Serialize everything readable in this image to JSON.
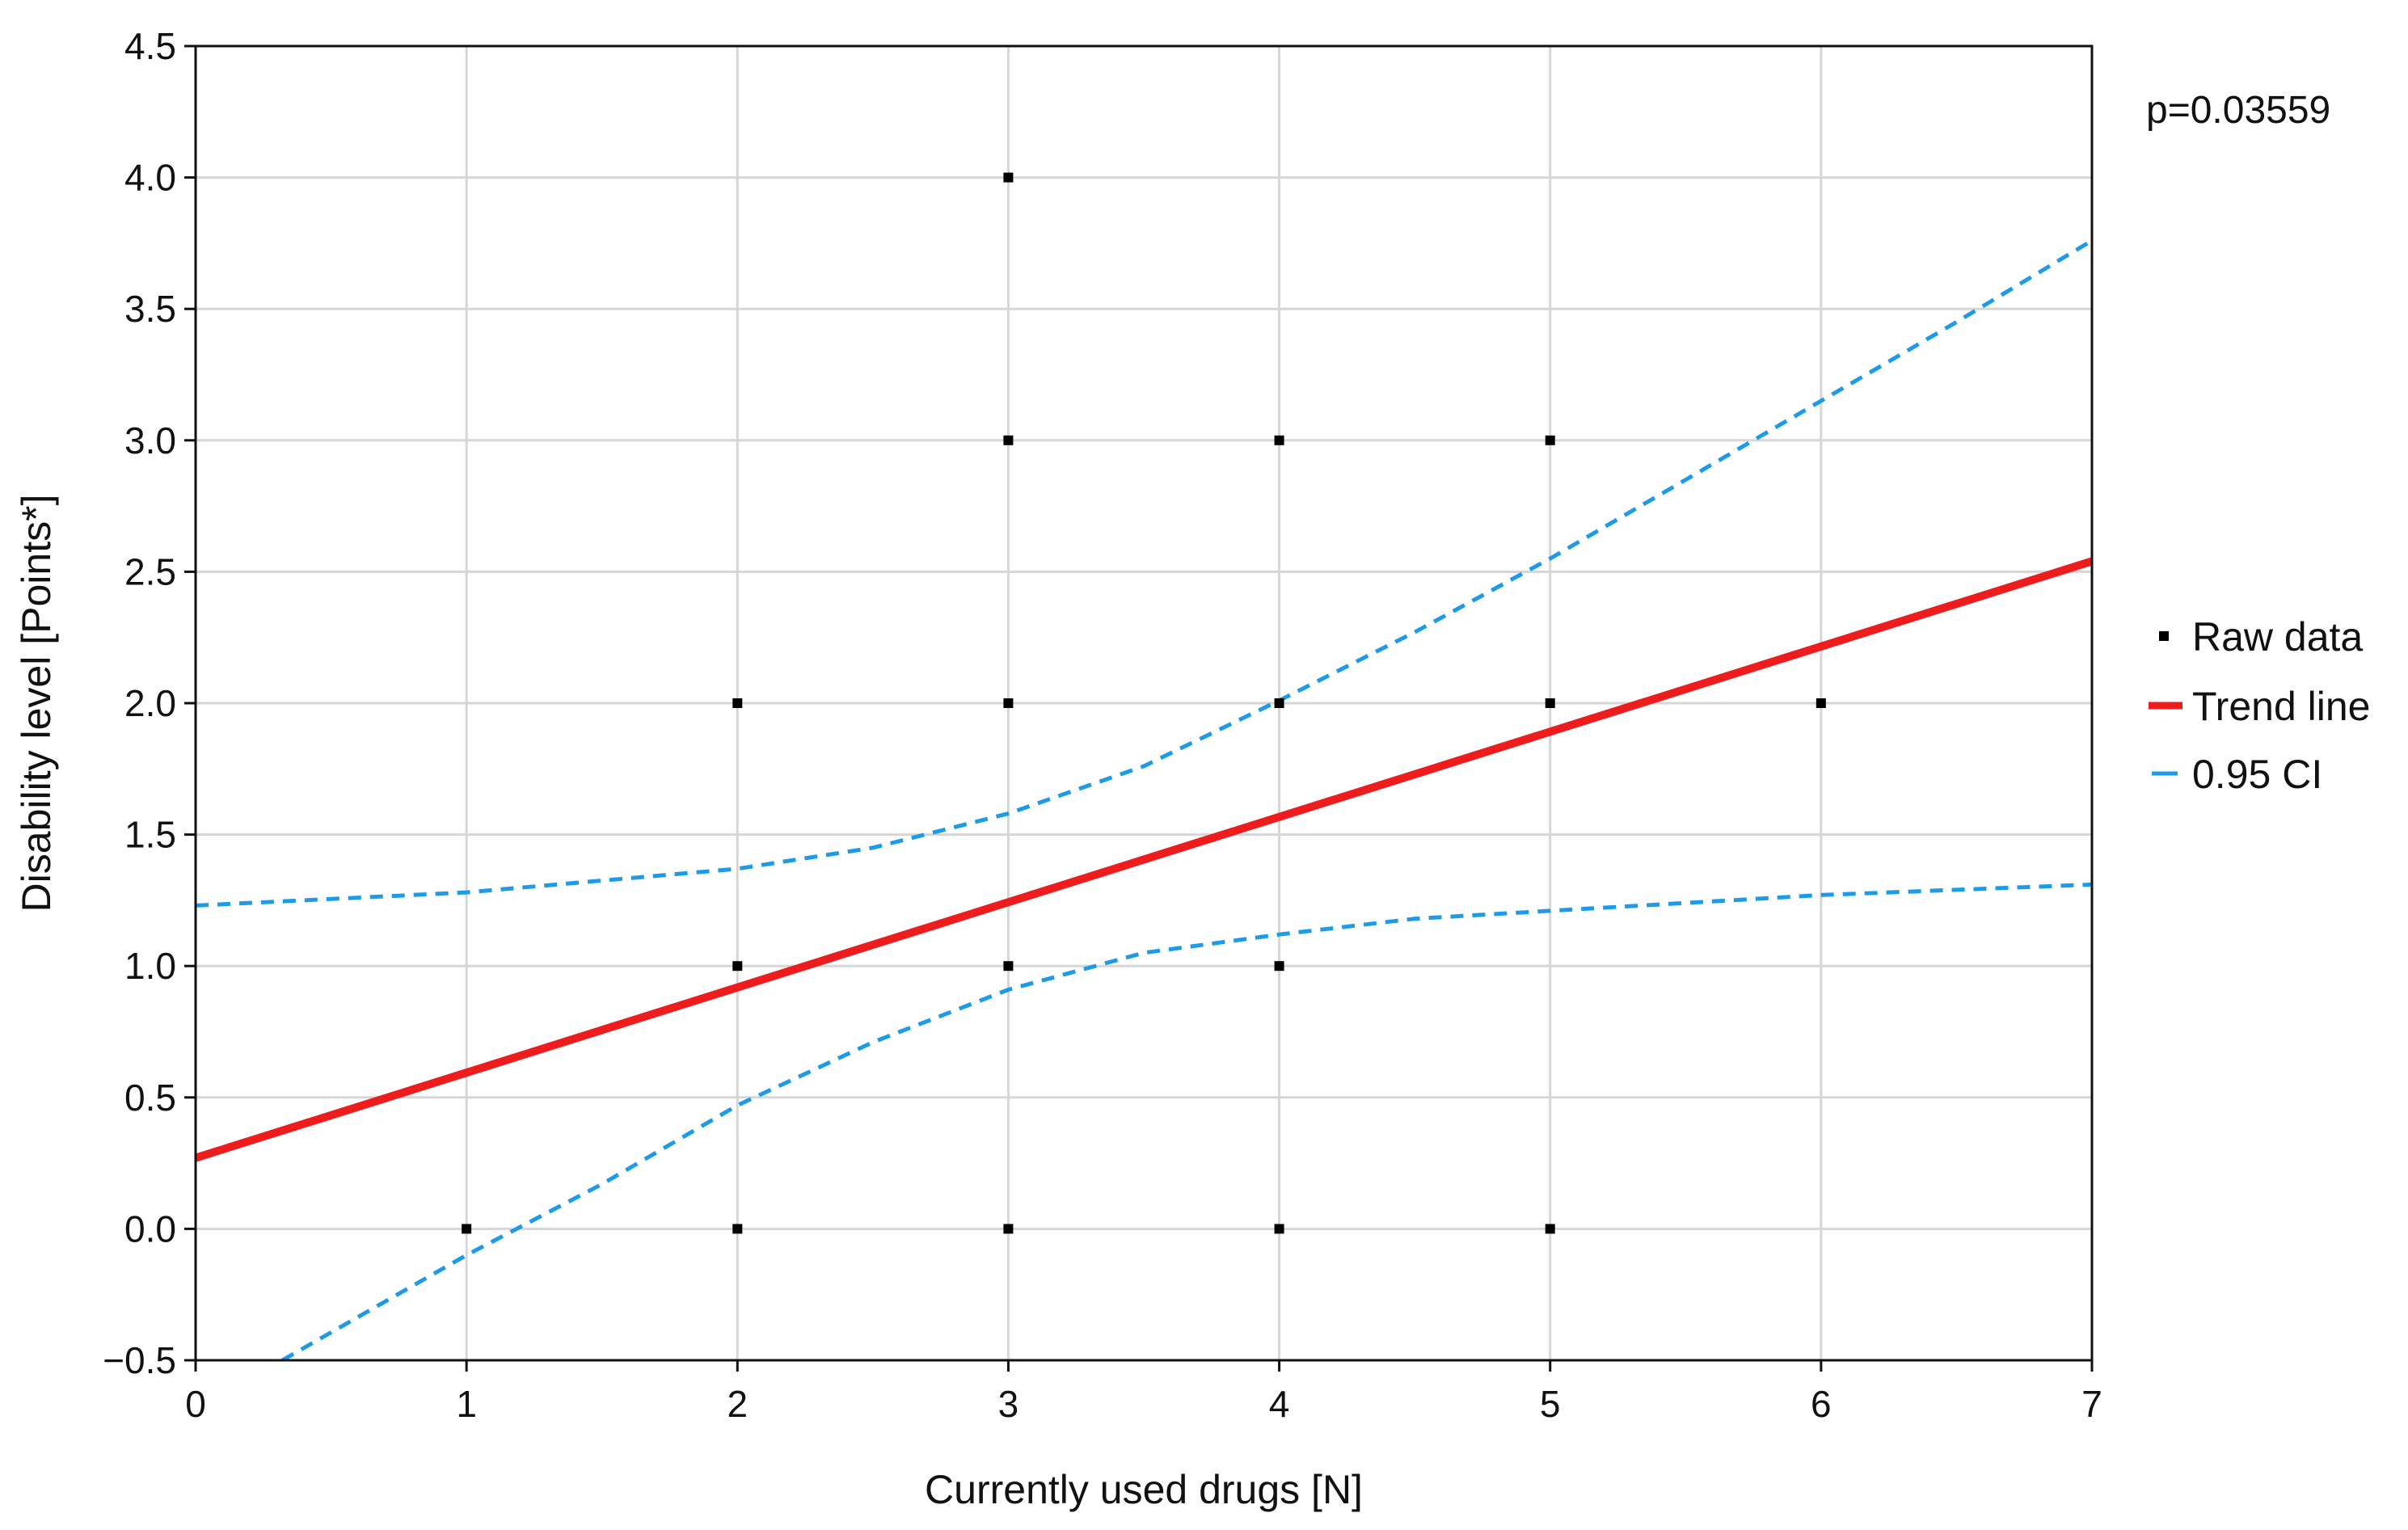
{
  "chart_data": {
    "type": "scatter",
    "title": "",
    "xlabel": "Currently used drugs [N]",
    "ylabel": "Disability level [Points*]",
    "xlim": [
      0,
      7
    ],
    "ylim": [
      -0.5,
      4.5
    ],
    "x_ticks": [
      0,
      1,
      2,
      3,
      4,
      5,
      6,
      7
    ],
    "y_ticks": [
      -0.5,
      0.0,
      0.5,
      1.0,
      1.5,
      2.0,
      2.5,
      3.0,
      3.5,
      4.0,
      4.5
    ],
    "x_tick_labels": [
      "0",
      "1",
      "2",
      "3",
      "4",
      "5",
      "6",
      "7"
    ],
    "y_tick_labels": [
      "−0.5",
      "0.0",
      "0.5",
      "1.0",
      "1.5",
      "2.0",
      "2.5",
      "3.0",
      "3.5",
      "4.0",
      "4.5"
    ],
    "grid": true,
    "legend_position": "right",
    "annotation": "p=0.03559",
    "series": [
      {
        "name": "Raw data",
        "kind": "scatter",
        "color": "#000000",
        "points": [
          {
            "x": 1,
            "y": 0
          },
          {
            "x": 2,
            "y": 0
          },
          {
            "x": 2,
            "y": 1
          },
          {
            "x": 2,
            "y": 2
          },
          {
            "x": 3,
            "y": 0
          },
          {
            "x": 3,
            "y": 1
          },
          {
            "x": 3,
            "y": 2
          },
          {
            "x": 3,
            "y": 3
          },
          {
            "x": 3,
            "y": 4
          },
          {
            "x": 4,
            "y": 0
          },
          {
            "x": 4,
            "y": 1
          },
          {
            "x": 4,
            "y": 2
          },
          {
            "x": 4,
            "y": 3
          },
          {
            "x": 5,
            "y": 0
          },
          {
            "x": 5,
            "y": 2
          },
          {
            "x": 5,
            "y": 3
          },
          {
            "x": 6,
            "y": 2
          }
        ]
      },
      {
        "name": "Trend line",
        "kind": "line",
        "color": "#ee1c1c",
        "x": [
          0,
          7
        ],
        "y": [
          0.27,
          2.54
        ]
      },
      {
        "name": "0.95 CI",
        "kind": "dashed",
        "color": "#1e9be8",
        "upper": {
          "x": [
            0,
            1,
            2,
            2.5,
            3,
            3.5,
            4,
            4.5,
            5,
            5.5,
            6,
            6.5,
            7
          ],
          "y": [
            1.23,
            1.28,
            1.37,
            1.45,
            1.58,
            1.76,
            2.01,
            2.27,
            2.55,
            2.85,
            3.15,
            3.45,
            3.76
          ]
        },
        "lower": {
          "x": [
            0.32,
            1,
            1.5,
            2,
            2.5,
            3,
            3.5,
            4,
            4.5,
            5,
            5.5,
            6,
            6.5,
            7
          ],
          "y": [
            -0.5,
            -0.1,
            0.17,
            0.47,
            0.71,
            0.91,
            1.05,
            1.12,
            1.18,
            1.21,
            1.24,
            1.27,
            1.29,
            1.31
          ]
        }
      }
    ]
  },
  "legend": {
    "items": [
      {
        "label": "Raw data",
        "symbol": "square",
        "color": "#000000"
      },
      {
        "label": "Trend line",
        "symbol": "solid-line",
        "color": "#ee1c1c"
      },
      {
        "label": "0.95 CI",
        "symbol": "dashed-line",
        "color": "#1e9be8"
      }
    ]
  }
}
